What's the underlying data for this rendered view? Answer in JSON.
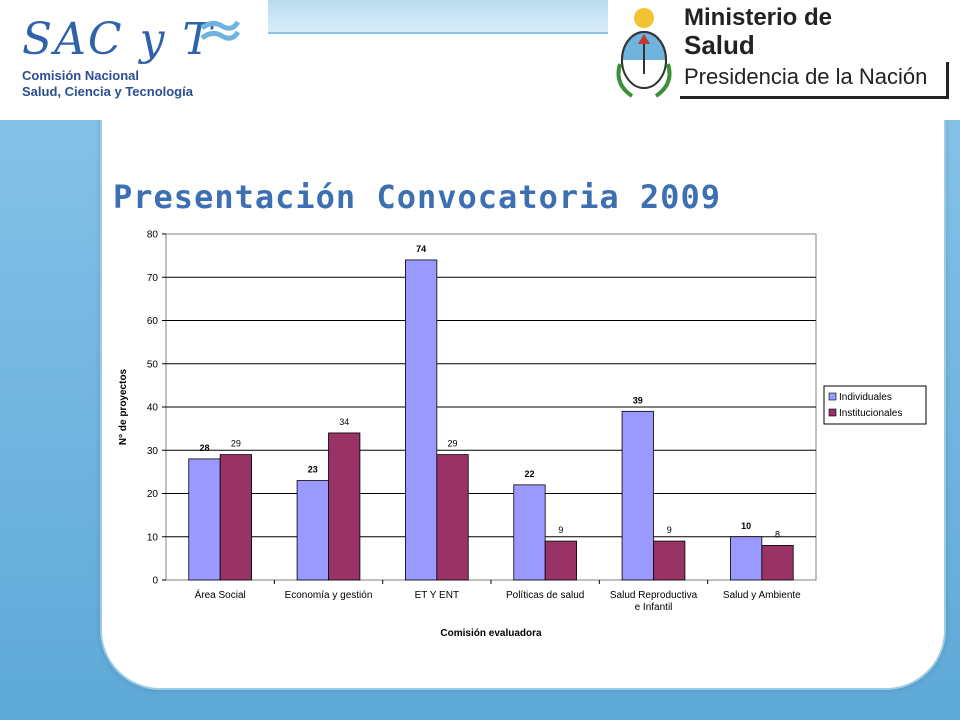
{
  "header": {
    "logo_left_main": "SAC y T",
    "logo_left_sub1": "Comisión Nacional",
    "logo_left_sub2": "Salud, Ciencia y Tecnología",
    "ministry_line1": "Ministerio de",
    "ministry_line2": "Salud",
    "ministry_line3": "Presidencia de la Nación"
  },
  "slide": {
    "title": "Presentación Convocatoria 2009"
  },
  "colors": {
    "individuales": "#9999ff",
    "institucionales": "#993366",
    "plot_bg": "#ffffff",
    "title": "#3d6fb3"
  },
  "chart_data": {
    "type": "bar",
    "categories": [
      "Área Social",
      "Economía y gestión",
      "ET Y ENT",
      "Políticas de salud",
      "Salud Reproductiva e Infantil",
      "Salud y Ambiente"
    ],
    "category_lines": [
      [
        "Área Social"
      ],
      [
        "Economía y gestión"
      ],
      [
        "ET Y ENT"
      ],
      [
        "Políticas de salud"
      ],
      [
        "Salud Reproductiva",
        "e Infantil"
      ],
      [
        "Salud y Ambiente"
      ]
    ],
    "series": [
      {
        "name": "Individuales",
        "values": [
          28,
          23,
          74,
          22,
          39,
          10
        ]
      },
      {
        "name": "Institucionales",
        "values": [
          29,
          34,
          29,
          9,
          9,
          8
        ]
      }
    ],
    "xlabel": "Comisión evaluadora",
    "ylabel": "N° de proyectos",
    "ylim": [
      0,
      80
    ],
    "yticks": [
      0,
      10,
      20,
      30,
      40,
      50,
      60,
      70,
      80
    ],
    "grid": true,
    "legend_position": "right"
  }
}
